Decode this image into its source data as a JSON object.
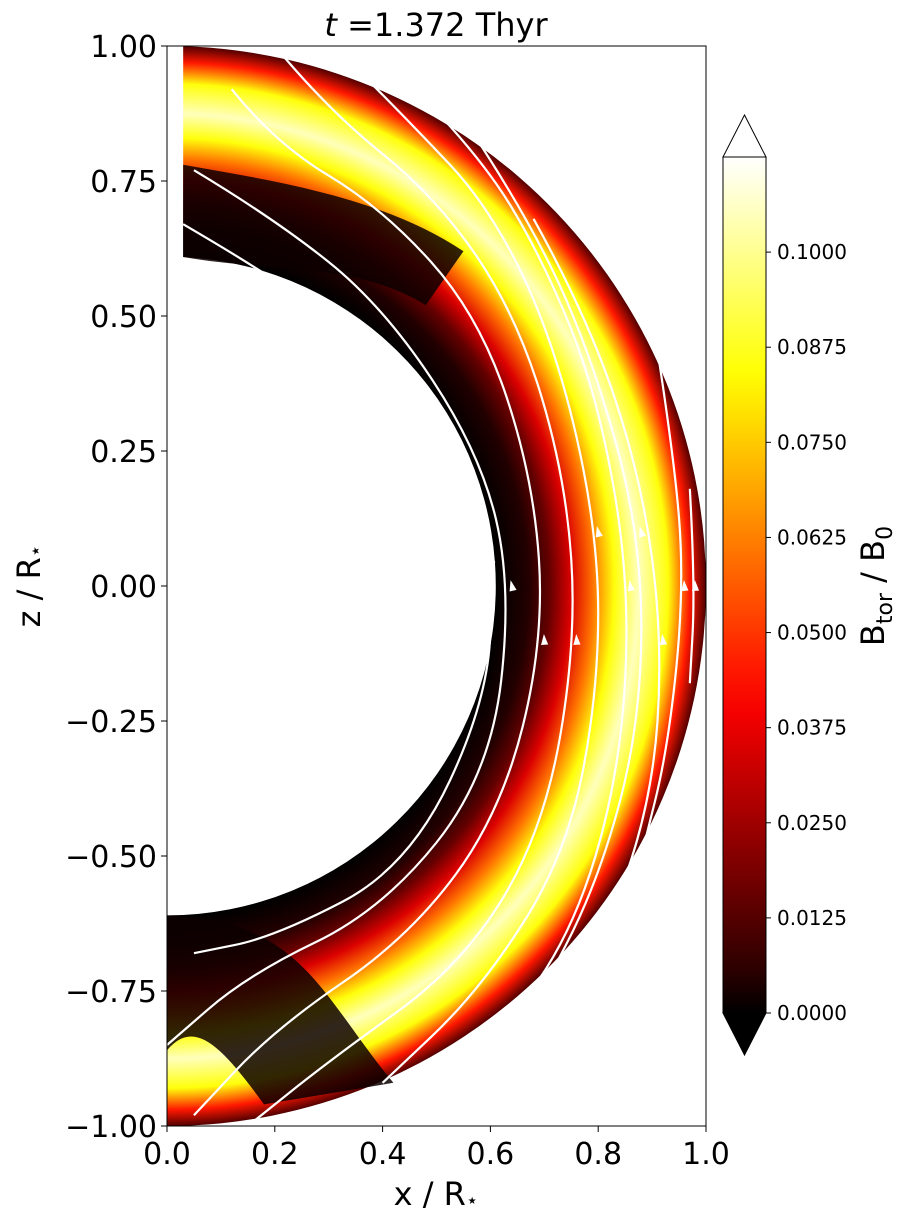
{
  "chart_data": {
    "type": "heatmap",
    "title": "$t$ =1.372 Thyr",
    "title_prefix": "t",
    "title_value": " =1.372 Thyr",
    "xlabel": "x / R",
    "ylabel": "z / R",
    "star_glyph": "⋆",
    "xlim": [
      0.0,
      1.0
    ],
    "ylim": [
      -1.0,
      1.0
    ],
    "xticks": [
      "0.0",
      "0.2",
      "0.4",
      "0.6",
      "0.8",
      "1.0"
    ],
    "yticks": [
      "−1.00",
      "−0.75",
      "−0.50",
      "−0.25",
      "0.00",
      "0.25",
      "0.50",
      "0.75",
      "1.00"
    ],
    "domain": {
      "inner_radius": 0.61,
      "outer_radius": 1.0,
      "polar_cut_x": 0.03
    },
    "field_peak": {
      "radius": 0.875,
      "max_value": 0.105,
      "description_values": "B_tor peaks near r ≈ 0.87 at the equator"
    },
    "colorbar": {
      "label_main": "B",
      "label_sub": "tor",
      "label_mid": " / B",
      "label_sub2": "0",
      "colormap": "hot",
      "vmin": 0.0,
      "vmax": 0.1125,
      "extend": "both",
      "ticks": [
        "0.0000",
        "0.0125",
        "0.0250",
        "0.0375",
        "0.0500",
        "0.0625",
        "0.0750",
        "0.0875",
        "0.1000"
      ],
      "tick_values": [
        0.0,
        0.0125,
        0.025,
        0.0375,
        0.05,
        0.0625,
        0.075,
        0.0875,
        0.1
      ]
    },
    "streamlines_color": "#ffffff"
  }
}
